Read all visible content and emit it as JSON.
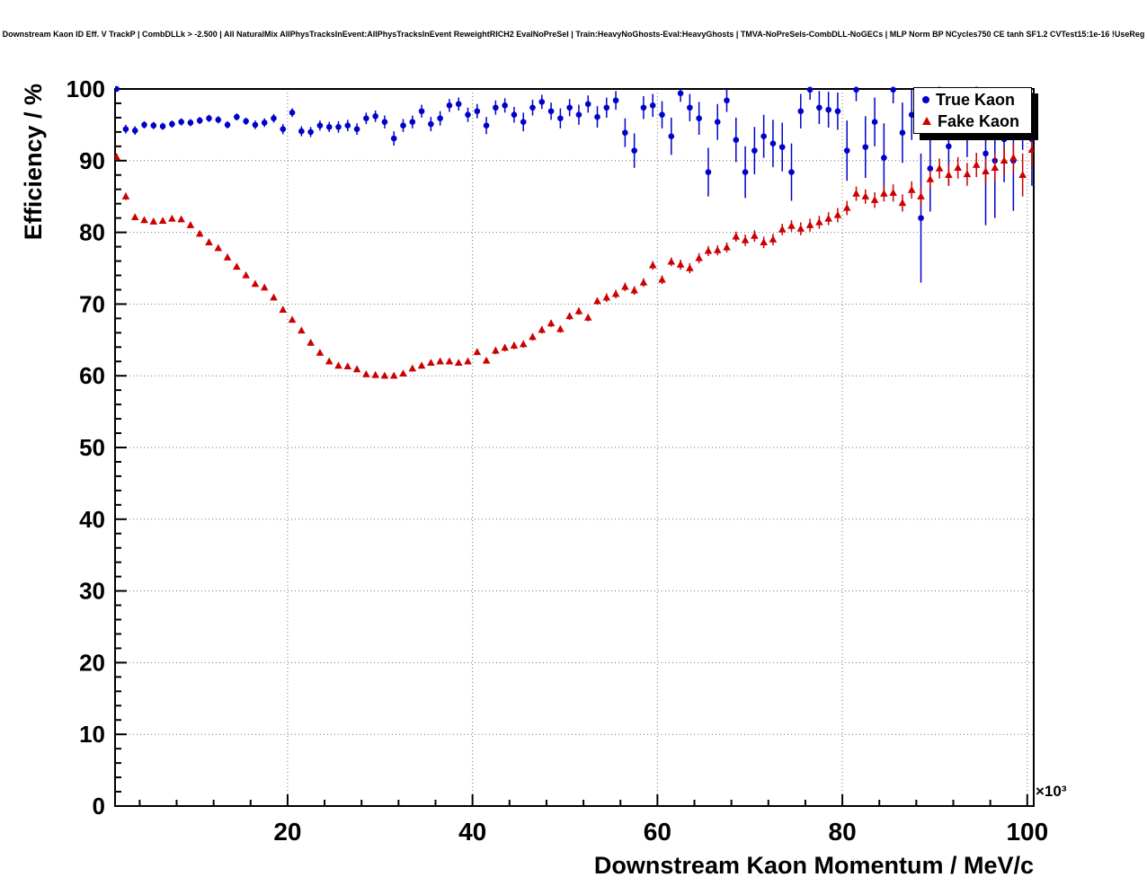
{
  "title": "Downstream Kaon ID Eff. V TrackP | CombDLLk > -2.500 | All NaturalMix AllPhysTracksInEvent:AllPhysTracksInEvent ReweightRICH2 EvalNoPreSel | Train:HeavyNoGhosts-Eval:HeavyGhosts | TMVA-NoPreSels-CombDLL-NoGECs | MLP Norm BP NCycles750 CE tanh SF1.2 CVTest15:1e-16 !UseReg",
  "chart_data": {
    "type": "scatter",
    "title": "Downstream Kaon ID Eff. V TrackP | CombDLLk > -2.500",
    "xlabel": "Downstream Kaon Momentum / MeV/c",
    "ylabel": "Efficiency / %",
    "x_power_label": "×10³",
    "xlim": [
      1.34,
      100.7
    ],
    "ylim": [
      0,
      100
    ],
    "xticks": {
      "values": [
        20,
        40,
        60,
        80,
        100
      ],
      "labels": [
        "20",
        "40",
        "60",
        "80",
        "100"
      ]
    },
    "yticks": {
      "values": [
        0,
        10,
        20,
        30,
        40,
        50,
        60,
        70,
        80,
        90,
        100
      ],
      "labels": [
        "0",
        "10",
        "20",
        "30",
        "40",
        "50",
        "60",
        "70",
        "80",
        "90",
        "100"
      ]
    },
    "minor_x_step": 4,
    "minor_y_step": 2,
    "grid": true,
    "legend_position": "top-right",
    "series": [
      {
        "name": "True Kaon",
        "marker": "circle",
        "color": "#0000cc",
        "points": [
          [
            1.5,
            100,
            0.3
          ],
          [
            2.5,
            94.4,
            0.6
          ],
          [
            3.5,
            94.2,
            0.6
          ],
          [
            4.5,
            95.0,
            0.5
          ],
          [
            5.5,
            94.9,
            0.5
          ],
          [
            6.5,
            94.8,
            0.5
          ],
          [
            7.5,
            95.1,
            0.5
          ],
          [
            8.5,
            95.4,
            0.5
          ],
          [
            9.5,
            95.3,
            0.5
          ],
          [
            10.5,
            95.6,
            0.5
          ],
          [
            11.5,
            95.9,
            0.5
          ],
          [
            12.5,
            95.7,
            0.5
          ],
          [
            13.5,
            95.0,
            0.5
          ],
          [
            14.5,
            96.1,
            0.5
          ],
          [
            15.5,
            95.5,
            0.5
          ],
          [
            16.5,
            95.0,
            0.6
          ],
          [
            17.5,
            95.3,
            0.6
          ],
          [
            18.5,
            95.9,
            0.6
          ],
          [
            19.5,
            94.4,
            0.7
          ],
          [
            20.5,
            96.7,
            0.6
          ],
          [
            21.5,
            94.1,
            0.7
          ],
          [
            22.5,
            94.0,
            0.7
          ],
          [
            23.5,
            94.9,
            0.7
          ],
          [
            24.5,
            94.7,
            0.7
          ],
          [
            25.5,
            94.7,
            0.8
          ],
          [
            26.5,
            94.9,
            0.8
          ],
          [
            27.5,
            94.4,
            0.8
          ],
          [
            28.5,
            95.9,
            0.8
          ],
          [
            29.5,
            96.2,
            0.8
          ],
          [
            30.5,
            95.4,
            0.9
          ],
          [
            31.5,
            93.1,
            1.0
          ],
          [
            32.5,
            94.9,
            0.9
          ],
          [
            33.5,
            95.4,
            0.9
          ],
          [
            34.5,
            96.9,
            0.9
          ],
          [
            35.5,
            95.1,
            1.0
          ],
          [
            36.5,
            95.9,
            1.0
          ],
          [
            37.5,
            97.7,
            0.9
          ],
          [
            38.5,
            97.9,
            0.9
          ],
          [
            39.5,
            96.4,
            1.0
          ],
          [
            40.5,
            96.9,
            1.0
          ],
          [
            41.5,
            94.9,
            1.2
          ],
          [
            42.5,
            97.4,
            1.0
          ],
          [
            43.5,
            97.7,
            1.0
          ],
          [
            44.5,
            96.4,
            1.1
          ],
          [
            45.5,
            95.4,
            1.3
          ],
          [
            46.5,
            97.4,
            1.1
          ],
          [
            47.5,
            98.2,
            1.0
          ],
          [
            48.5,
            96.9,
            1.2
          ],
          [
            49.5,
            95.9,
            1.4
          ],
          [
            50.5,
            97.4,
            1.2
          ],
          [
            51.5,
            96.4,
            1.4
          ],
          [
            52.5,
            97.9,
            1.2
          ],
          [
            53.5,
            96.1,
            1.5
          ],
          [
            54.5,
            97.4,
            1.4
          ],
          [
            55.5,
            98.4,
            1.3
          ],
          [
            56.5,
            93.9,
            2.0
          ],
          [
            57.5,
            91.4,
            2.4
          ],
          [
            58.5,
            97.4,
            1.6
          ],
          [
            59.5,
            97.7,
            1.6
          ],
          [
            60.5,
            96.4,
            1.9
          ],
          [
            61.5,
            93.4,
            2.6
          ],
          [
            62.5,
            99.4,
            1.2
          ],
          [
            63.5,
            97.4,
            1.9
          ],
          [
            64.5,
            95.9,
            2.3
          ],
          [
            65.5,
            88.4,
            3.4
          ],
          [
            66.5,
            95.4,
            2.5
          ],
          [
            67.5,
            98.4,
            1.6
          ],
          [
            68.5,
            92.9,
            3.1
          ],
          [
            69.5,
            88.4,
            3.6
          ],
          [
            70.5,
            91.4,
            3.3
          ],
          [
            71.5,
            93.4,
            3.0
          ],
          [
            72.5,
            92.4,
            3.3
          ],
          [
            73.5,
            91.9,
            3.4
          ],
          [
            74.5,
            88.4,
            4.0
          ],
          [
            75.5,
            96.9,
            2.4
          ],
          [
            76.5,
            99.9,
            1.4
          ],
          [
            77.5,
            97.4,
            2.3
          ],
          [
            78.5,
            97.1,
            2.5
          ],
          [
            79.5,
            96.9,
            2.6
          ],
          [
            80.5,
            91.4,
            4.2
          ],
          [
            81.5,
            99.9,
            1.6
          ],
          [
            82.5,
            91.9,
            4.3
          ],
          [
            83.5,
            95.4,
            3.4
          ],
          [
            84.5,
            90.4,
            4.8
          ],
          [
            85.5,
            99.9,
            1.9
          ],
          [
            86.5,
            93.9,
            4.2
          ],
          [
            87.5,
            96.4,
            3.5
          ],
          [
            88.5,
            82.0,
            9.0
          ],
          [
            89.5,
            88.9,
            6.0
          ],
          [
            90.5,
            99.9,
            2.2
          ],
          [
            91.5,
            92.0,
            5.5
          ],
          [
            92.5,
            97.0,
            3.5
          ],
          [
            93.5,
            95.0,
            4.5
          ],
          [
            94.5,
            99.9,
            2.5
          ],
          [
            95.5,
            91.0,
            10.0
          ],
          [
            96.5,
            90.0,
            8.0
          ],
          [
            97.5,
            93.0,
            6.0
          ],
          [
            98.5,
            90.0,
            7.0
          ],
          [
            99.5,
            96.0,
            4.5
          ],
          [
            100.5,
            93.0,
            6.5
          ]
        ]
      },
      {
        "name": "Fake Kaon",
        "marker": "triangle",
        "color": "#cc0000",
        "points": [
          [
            1.5,
            90.5,
            0.5
          ],
          [
            2.5,
            85.0,
            0.5
          ],
          [
            3.5,
            82.1,
            0.4
          ],
          [
            4.5,
            81.7,
            0.4
          ],
          [
            5.5,
            81.5,
            0.4
          ],
          [
            6.5,
            81.6,
            0.4
          ],
          [
            7.5,
            81.9,
            0.4
          ],
          [
            8.5,
            81.8,
            0.4
          ],
          [
            9.5,
            81.0,
            0.4
          ],
          [
            10.5,
            79.8,
            0.4
          ],
          [
            11.5,
            78.6,
            0.4
          ],
          [
            12.5,
            77.8,
            0.4
          ],
          [
            13.5,
            76.5,
            0.4
          ],
          [
            14.5,
            75.2,
            0.4
          ],
          [
            15.5,
            74.0,
            0.4
          ],
          [
            16.5,
            72.8,
            0.4
          ],
          [
            17.5,
            72.3,
            0.4
          ],
          [
            18.5,
            70.9,
            0.4
          ],
          [
            19.5,
            69.2,
            0.4
          ],
          [
            20.5,
            67.8,
            0.4
          ],
          [
            21.5,
            66.3,
            0.4
          ],
          [
            22.5,
            64.6,
            0.4
          ],
          [
            23.5,
            63.2,
            0.4
          ],
          [
            24.5,
            62.0,
            0.4
          ],
          [
            25.5,
            61.4,
            0.4
          ],
          [
            26.5,
            61.3,
            0.4
          ],
          [
            27.5,
            60.9,
            0.4
          ],
          [
            28.5,
            60.2,
            0.4
          ],
          [
            29.5,
            60.1,
            0.4
          ],
          [
            30.5,
            60.0,
            0.4
          ],
          [
            31.5,
            60.0,
            0.4
          ],
          [
            32.5,
            60.3,
            0.4
          ],
          [
            33.5,
            61.0,
            0.4
          ],
          [
            34.5,
            61.4,
            0.4
          ],
          [
            35.5,
            61.8,
            0.4
          ],
          [
            36.5,
            62.0,
            0.4
          ],
          [
            37.5,
            62.0,
            0.4
          ],
          [
            38.5,
            61.8,
            0.4
          ],
          [
            39.5,
            62.0,
            0.4
          ],
          [
            40.5,
            63.3,
            0.4
          ],
          [
            41.5,
            62.1,
            0.4
          ],
          [
            42.5,
            63.5,
            0.5
          ],
          [
            43.5,
            63.9,
            0.5
          ],
          [
            44.5,
            64.2,
            0.5
          ],
          [
            45.5,
            64.4,
            0.5
          ],
          [
            46.5,
            65.4,
            0.5
          ],
          [
            47.5,
            66.4,
            0.5
          ],
          [
            48.5,
            67.3,
            0.5
          ],
          [
            49.5,
            66.5,
            0.5
          ],
          [
            50.5,
            68.3,
            0.5
          ],
          [
            51.5,
            69.0,
            0.5
          ],
          [
            52.5,
            68.1,
            0.5
          ],
          [
            53.5,
            70.4,
            0.5
          ],
          [
            54.5,
            70.9,
            0.6
          ],
          [
            55.5,
            71.4,
            0.6
          ],
          [
            56.5,
            72.4,
            0.6
          ],
          [
            57.5,
            71.9,
            0.6
          ],
          [
            58.5,
            73.0,
            0.6
          ],
          [
            59.5,
            75.4,
            0.6
          ],
          [
            60.5,
            73.4,
            0.6
          ],
          [
            61.5,
            75.9,
            0.6
          ],
          [
            62.5,
            75.5,
            0.7
          ],
          [
            63.5,
            75.0,
            0.7
          ],
          [
            64.5,
            76.4,
            0.7
          ],
          [
            65.5,
            77.4,
            0.7
          ],
          [
            66.5,
            77.5,
            0.7
          ],
          [
            67.5,
            77.9,
            0.7
          ],
          [
            68.5,
            79.4,
            0.7
          ],
          [
            69.5,
            78.9,
            0.8
          ],
          [
            70.5,
            79.5,
            0.8
          ],
          [
            71.5,
            78.6,
            0.8
          ],
          [
            72.5,
            79.0,
            0.8
          ],
          [
            73.5,
            80.4,
            0.8
          ],
          [
            74.5,
            80.9,
            0.8
          ],
          [
            75.5,
            80.5,
            0.9
          ],
          [
            76.5,
            81.0,
            0.9
          ],
          [
            77.5,
            81.4,
            0.9
          ],
          [
            78.5,
            81.9,
            0.9
          ],
          [
            79.5,
            82.4,
            1.0
          ],
          [
            80.5,
            83.4,
            1.0
          ],
          [
            81.5,
            85.4,
            1.0
          ],
          [
            82.5,
            85.0,
            1.0
          ],
          [
            83.5,
            84.5,
            1.1
          ],
          [
            84.5,
            85.4,
            1.1
          ],
          [
            85.5,
            85.5,
            1.2
          ],
          [
            86.5,
            84.1,
            1.2
          ],
          [
            87.5,
            85.9,
            1.2
          ],
          [
            88.5,
            85.0,
            1.3
          ],
          [
            89.5,
            87.4,
            1.3
          ],
          [
            90.5,
            88.9,
            1.4
          ],
          [
            91.5,
            88.0,
            1.5
          ],
          [
            92.5,
            89.0,
            1.5
          ],
          [
            93.5,
            88.1,
            1.6
          ],
          [
            94.5,
            89.4,
            1.7
          ],
          [
            95.5,
            88.5,
            1.8
          ],
          [
            96.5,
            89.0,
            1.9
          ],
          [
            97.5,
            90.0,
            2.0
          ],
          [
            98.5,
            90.4,
            2.1
          ],
          [
            99.5,
            88.0,
            3.0
          ],
          [
            100.5,
            91.5,
            2.3
          ]
        ]
      }
    ]
  }
}
